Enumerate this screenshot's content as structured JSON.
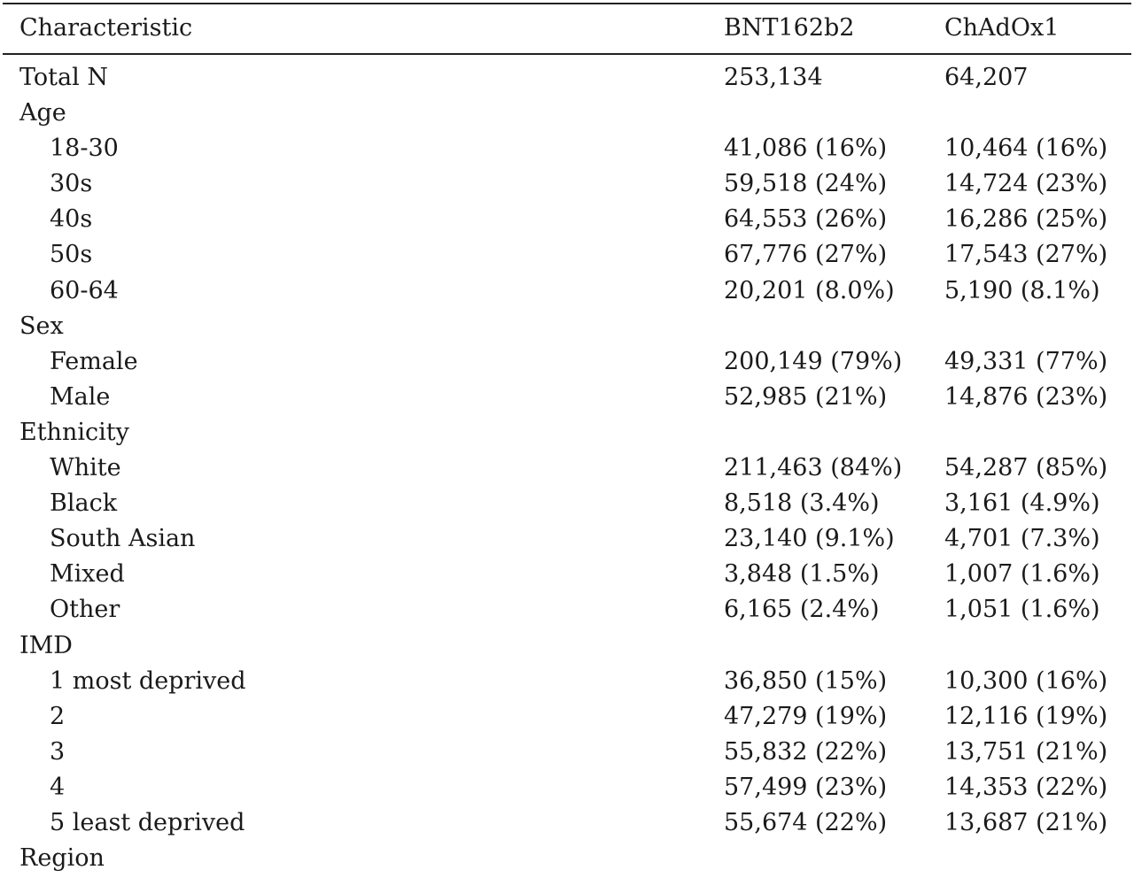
{
  "columns": [
    "Characteristic",
    "BNT162b2",
    "ChAdOx1"
  ],
  "rows": [
    {
      "label": "Total N",
      "indent": false,
      "bnt": "253,134",
      "chad": "64,207"
    },
    {
      "label": "Age",
      "indent": false,
      "bnt": "",
      "chad": ""
    },
    {
      "label": "18-30",
      "indent": true,
      "bnt": "41,086 (16%)",
      "chad": "10,464 (16%)"
    },
    {
      "label": "30s",
      "indent": true,
      "bnt": "59,518 (24%)",
      "chad": "14,724 (23%)"
    },
    {
      "label": "40s",
      "indent": true,
      "bnt": "64,553 (26%)",
      "chad": "16,286 (25%)"
    },
    {
      "label": "50s",
      "indent": true,
      "bnt": "67,776 (27%)",
      "chad": "17,543 (27%)"
    },
    {
      "label": "60-64",
      "indent": true,
      "bnt": "20,201 (8.0%)",
      "chad": "5,190 (8.1%)"
    },
    {
      "label": "Sex",
      "indent": false,
      "bnt": "",
      "chad": ""
    },
    {
      "label": "Female",
      "indent": true,
      "bnt": "200,149 (79%)",
      "chad": "49,331 (77%)"
    },
    {
      "label": "Male",
      "indent": true,
      "bnt": "52,985 (21%)",
      "chad": "14,876 (23%)"
    },
    {
      "label": "Ethnicity",
      "indent": false,
      "bnt": "",
      "chad": ""
    },
    {
      "label": "White",
      "indent": true,
      "bnt": "211,463 (84%)",
      "chad": "54,287 (85%)"
    },
    {
      "label": "Black",
      "indent": true,
      "bnt": "8,518 (3.4%)",
      "chad": "3,161 (4.9%)"
    },
    {
      "label": "South Asian",
      "indent": true,
      "bnt": "23,140 (9.1%)",
      "chad": "4,701 (7.3%)"
    },
    {
      "label": "Mixed",
      "indent": true,
      "bnt": "3,848 (1.5%)",
      "chad": "1,007 (1.6%)"
    },
    {
      "label": "Other",
      "indent": true,
      "bnt": "6,165 (2.4%)",
      "chad": "1,051 (1.6%)"
    },
    {
      "label": "IMD",
      "indent": false,
      "bnt": "",
      "chad": ""
    },
    {
      "label": "1 most deprived",
      "indent": true,
      "bnt": "36,850 (15%)",
      "chad": "10,300 (16%)"
    },
    {
      "label": "2",
      "indent": true,
      "bnt": "47,279 (19%)",
      "chad": "12,116 (19%)"
    },
    {
      "label": "3",
      "indent": true,
      "bnt": "55,832 (22%)",
      "chad": "13,751 (21%)"
    },
    {
      "label": "4",
      "indent": true,
      "bnt": "57,499 (23%)",
      "chad": "14,353 (22%)"
    },
    {
      "label": "5 least deprived",
      "indent": true,
      "bnt": "55,674 (22%)",
      "chad": "13,687 (21%)"
    },
    {
      "label": "Region",
      "indent": false,
      "bnt": "",
      "chad": ""
    }
  ]
}
